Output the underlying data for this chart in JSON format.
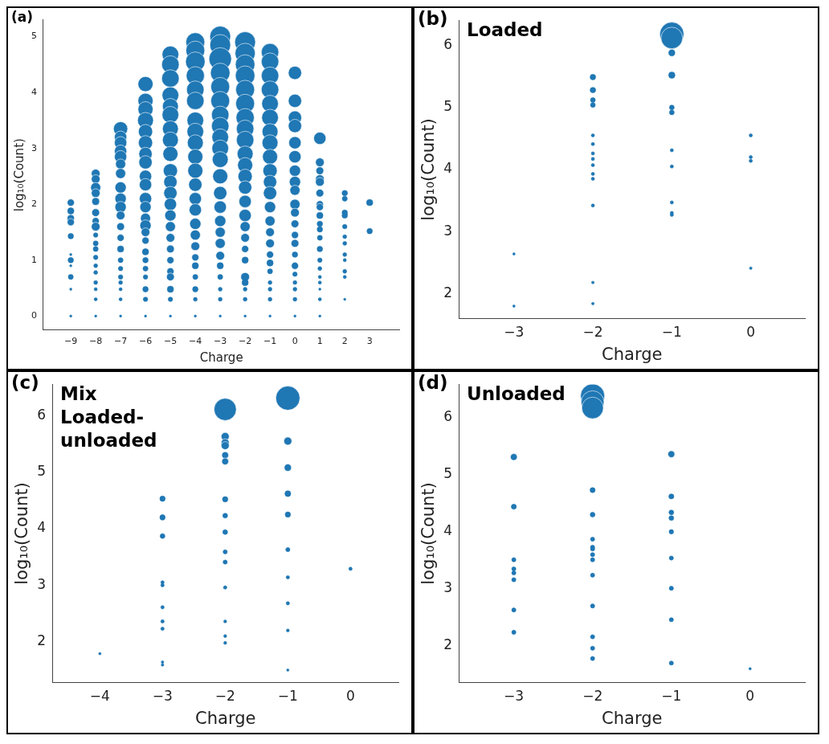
{
  "chart_data": [
    {
      "type": "bubble",
      "title": "(a)",
      "xlabel": "Charge",
      "ylabel": "log₁₀(Count)",
      "xlim": [
        -10.1,
        4.2
      ],
      "xticks": [
        -9,
        -8,
        -7,
        -6,
        -5,
        -4,
        -3,
        -2,
        -1,
        0,
        1,
        2,
        3
      ],
      "ylim": [
        -0.25,
        5.3
      ],
      "yticks": [
        0,
        1,
        2,
        3,
        4,
        5
      ],
      "series": [
        {
          "color": "#1f77b4",
          "x": [
            -9,
            -9,
            -9,
            -9,
            -9,
            -9,
            -9,
            -9,
            -9,
            -9,
            -9
          ],
          "values": [
            2.03,
            1.88,
            1.75,
            1.68,
            1.43,
            1.1,
            1.0,
            0.9,
            0.7,
            0.48,
            0
          ],
          "sizes": [
            0.1,
            0.08,
            0.08,
            0.1,
            0.06,
            0.01,
            0.06,
            0.01,
            0.05,
            0.01,
            0.01
          ]
        },
        {
          "color": "#1f77b4",
          "x": [
            -8,
            -8,
            -8,
            -8,
            -8,
            -8,
            -8,
            -8,
            -8,
            -8,
            -8,
            -8,
            -8,
            -8,
            -8,
            -8,
            -8,
            -8
          ],
          "values": [
            2.55,
            2.45,
            2.3,
            2.2,
            2.05,
            1.85,
            1.7,
            1.6,
            1.45,
            1.3,
            1.2,
            1.05,
            0.9,
            0.78,
            0.6,
            0.48,
            0.3,
            0
          ],
          "sizes": [
            0.15,
            0.15,
            0.2,
            0.15,
            0.12,
            0.12,
            0.1,
            0.15,
            0.04,
            0.05,
            0.05,
            0.04,
            0.03,
            0.03,
            0.03,
            0.02,
            0.02,
            0.01
          ]
        },
        {
          "color": "#1f77b4",
          "x": [
            -7,
            -7,
            -7,
            -7,
            -7,
            -7,
            -7,
            -7,
            -7,
            -7,
            -7,
            -7,
            -7,
            -7,
            -7,
            -7,
            -7,
            -7,
            -7,
            -7,
            -7
          ],
          "values": [
            3.35,
            3.2,
            3.1,
            2.95,
            2.85,
            2.72,
            2.55,
            2.3,
            2.1,
            1.95,
            1.8,
            1.6,
            1.4,
            1.2,
            1.0,
            0.85,
            0.7,
            0.6,
            0.48,
            0.3,
            0
          ],
          "sizes": [
            0.4,
            0.3,
            0.3,
            0.3,
            0.3,
            0.2,
            0.2,
            0.25,
            0.25,
            0.25,
            0.15,
            0.12,
            0.1,
            0.08,
            0.05,
            0.04,
            0.04,
            0.03,
            0.02,
            0.02,
            0.01
          ]
        },
        {
          "color": "#1f77b4",
          "x": [
            -6,
            -6,
            -6,
            -6,
            -6,
            -6,
            -6,
            -6,
            -6,
            -6,
            -6,
            -6,
            -6,
            -6,
            -6,
            -6,
            -6,
            -6,
            -6,
            -6,
            -6,
            -6,
            -6
          ],
          "values": [
            4.15,
            3.85,
            3.7,
            3.5,
            3.3,
            3.1,
            2.9,
            2.75,
            2.5,
            2.35,
            2.1,
            1.95,
            1.75,
            1.62,
            1.5,
            1.35,
            1.15,
            1.0,
            0.85,
            0.7,
            0.48,
            0.3,
            0
          ],
          "sizes": [
            0.45,
            0.45,
            0.45,
            0.5,
            0.4,
            0.4,
            0.35,
            0.35,
            0.3,
            0.3,
            0.3,
            0.25,
            0.2,
            0.25,
            0.15,
            0.1,
            0.08,
            0.06,
            0.05,
            0.04,
            0.06,
            0.04,
            0.01
          ]
        },
        {
          "color": "#1f77b4",
          "x": [
            -5,
            -5,
            -5,
            -5,
            -5,
            -5,
            -5,
            -5,
            -5,
            -5,
            -5,
            -5,
            -5,
            -5,
            -5,
            -5,
            -5,
            -5,
            -5,
            -5,
            -5,
            -5,
            -5
          ],
          "values": [
            4.68,
            4.5,
            4.25,
            3.95,
            3.75,
            3.6,
            3.35,
            3.15,
            2.9,
            2.6,
            2.4,
            2.2,
            2.0,
            1.8,
            1.6,
            1.4,
            1.2,
            1.0,
            0.8,
            0.7,
            0.48,
            0.3,
            0
          ],
          "sizes": [
            0.55,
            0.6,
            0.6,
            0.55,
            0.5,
            0.55,
            0.5,
            0.5,
            0.45,
            0.4,
            0.35,
            0.35,
            0.3,
            0.25,
            0.2,
            0.15,
            0.12,
            0.1,
            0.1,
            0.12,
            0.08,
            0.04,
            0.01
          ]
        },
        {
          "color": "#1f77b4",
          "x": [
            -4,
            -4,
            -4,
            -4,
            -4,
            -4,
            -4,
            -4,
            -4,
            -4,
            -4,
            -4,
            -4,
            -4,
            -4,
            -4,
            -4,
            -4,
            -4,
            -4,
            -4,
            -4,
            -4
          ],
          "values": [
            4.9,
            4.75,
            4.55,
            4.3,
            4.05,
            3.85,
            3.5,
            3.3,
            3.1,
            2.85,
            2.6,
            2.35,
            2.1,
            1.9,
            1.65,
            1.45,
            1.25,
            1.05,
            0.9,
            0.7,
            0.48,
            0.3,
            0
          ],
          "sizes": [
            0.7,
            0.7,
            0.75,
            0.65,
            0.6,
            0.6,
            0.55,
            0.55,
            0.5,
            0.45,
            0.45,
            0.35,
            0.3,
            0.3,
            0.25,
            0.2,
            0.15,
            0.1,
            0.08,
            0.05,
            0.06,
            0.03,
            0.01
          ]
        },
        {
          "color": "#1f77b4",
          "x": [
            -3,
            -3,
            -3,
            -3,
            -3,
            -3,
            -3,
            -3,
            -3,
            -3,
            -3,
            -3,
            -3,
            -3,
            -3,
            -3,
            -3,
            -3,
            -3,
            -3,
            -3,
            -3,
            -3
          ],
          "values": [
            5.0,
            4.85,
            4.6,
            4.35,
            4.1,
            3.85,
            3.6,
            3.4,
            3.2,
            3.0,
            2.8,
            2.5,
            2.2,
            1.95,
            1.7,
            1.5,
            1.3,
            1.08,
            0.9,
            0.7,
            0.48,
            0.3,
            0
          ],
          "sizes": [
            0.85,
            0.85,
            1,
            0.75,
            0.7,
            0.7,
            0.6,
            0.6,
            0.55,
            0.55,
            0.5,
            0.45,
            0.35,
            0.3,
            0.25,
            0.2,
            0.2,
            0.15,
            0.08,
            0.05,
            0.03,
            0.03,
            0.01
          ]
        },
        {
          "color": "#1f77b4",
          "x": [
            -2,
            -2,
            -2,
            -2,
            -2,
            -2,
            -2,
            -2,
            -2,
            -2,
            -2,
            -2,
            -2,
            -2,
            -2,
            -2,
            -2,
            -2,
            -2,
            -2,
            -2,
            -2,
            -2,
            -2
          ],
          "values": [
            4.9,
            4.7,
            4.5,
            4.3,
            4.05,
            3.8,
            3.55,
            3.35,
            3.15,
            2.9,
            2.7,
            2.5,
            2.3,
            2.05,
            1.8,
            1.6,
            1.4,
            1.2,
            1.0,
            0.7,
            0.6,
            0.48,
            0.3,
            0
          ],
          "sizes": [
            0.85,
            0.8,
            0.75,
            0.75,
            0.7,
            0.7,
            0.65,
            0.6,
            0.6,
            0.5,
            0.45,
            0.4,
            0.35,
            0.3,
            0.3,
            0.2,
            0.15,
            0.1,
            0.08,
            0.15,
            0.08,
            0.03,
            0.03,
            0.01
          ]
        },
        {
          "color": "#1f77b4",
          "x": [
            -1,
            -1,
            -1,
            -1,
            -1,
            -1,
            -1,
            -1,
            -1,
            -1,
            -1,
            -1,
            -1,
            -1,
            -1,
            -1,
            -1,
            -1,
            -1,
            -1,
            -1,
            -1,
            -1
          ],
          "values": [
            4.72,
            4.55,
            4.3,
            4.05,
            3.8,
            3.55,
            3.3,
            3.1,
            2.85,
            2.6,
            2.4,
            2.2,
            1.95,
            1.7,
            1.5,
            1.3,
            1.1,
            0.95,
            0.8,
            0.6,
            0.48,
            0.3,
            0
          ],
          "sizes": [
            0.6,
            0.6,
            0.6,
            0.6,
            0.55,
            0.55,
            0.5,
            0.5,
            0.45,
            0.4,
            0.35,
            0.35,
            0.25,
            0.2,
            0.15,
            0.15,
            0.1,
            0.08,
            0.05,
            0.03,
            0.03,
            0.03,
            0.01
          ]
        },
        {
          "color": "#1f77b4",
          "x": [
            0,
            0,
            0,
            0,
            0,
            0,
            0,
            0,
            0,
            0,
            0,
            0,
            0,
            0,
            0,
            0,
            0,
            0,
            0,
            0,
            0
          ],
          "values": [
            4.35,
            3.85,
            3.55,
            3.4,
            3.1,
            2.85,
            2.6,
            2.4,
            2.25,
            2.0,
            1.85,
            1.65,
            1.45,
            1.3,
            1.1,
            0.9,
            0.75,
            0.6,
            0.48,
            0.3,
            0
          ],
          "sizes": [
            0.35,
            0.35,
            0.35,
            0.35,
            0.3,
            0.3,
            0.25,
            0.25,
            0.2,
            0.2,
            0.15,
            0.12,
            0.1,
            0.12,
            0.06,
            0.1,
            0.04,
            0.03,
            0.03,
            0.03,
            0.01
          ]
        },
        {
          "color": "#1f77b4",
          "x": [
            1,
            1,
            1,
            1,
            1,
            1,
            1,
            1,
            1,
            1,
            1,
            1,
            1,
            1,
            1,
            1,
            1,
            1,
            1,
            1
          ],
          "values": [
            3.18,
            2.75,
            2.6,
            2.45,
            2.4,
            2.2,
            2.0,
            1.95,
            1.8,
            1.65,
            1.55,
            1.4,
            1.2,
            1.0,
            0.85,
            0.7,
            0.6,
            0.48,
            0.3,
            0
          ],
          "sizes": [
            0.3,
            0.15,
            0.12,
            0.15,
            0.15,
            0.12,
            0.1,
            0.1,
            0.08,
            0.06,
            0.06,
            0.05,
            0.06,
            0.04,
            0.03,
            0.02,
            0.02,
            0.01,
            0.02,
            0.01
          ]
        },
        {
          "color": "#1f77b4",
          "x": [
            2,
            2,
            2,
            2,
            2,
            2,
            2,
            2,
            2,
            2,
            2,
            2
          ],
          "values": [
            2.2,
            2.1,
            1.85,
            1.8,
            1.6,
            1.42,
            1.3,
            1.1,
            1.0,
            0.8,
            0.7,
            0.3
          ],
          "sizes": [
            0.06,
            0.05,
            0.06,
            0.06,
            0.04,
            0.03,
            0.03,
            0.03,
            0.02,
            0.03,
            0.02,
            0.01
          ]
        },
        {
          "color": "#1f77b4",
          "x": [
            3,
            3
          ],
          "values": [
            2.03,
            1.52
          ],
          "sizes": [
            0.08,
            0.06
          ]
        }
      ]
    },
    {
      "type": "bubble",
      "title": "(b)",
      "annotations": [
        "Loaded"
      ],
      "xlabel": "Charge",
      "ylabel": "log₁₀(Count)",
      "xlim": [
        -3.7,
        0.69
      ],
      "xticks": [
        -3,
        -2,
        -1,
        0
      ],
      "ylim": [
        1.6,
        6.4
      ],
      "yticks": [
        2,
        3,
        4,
        5,
        6
      ],
      "series": [
        {
          "color": "#1f77b4",
          "x": [
            -3,
            -3,
            -2,
            -2,
            -2,
            -2,
            -2,
            -2,
            -2,
            -2,
            -2,
            -2,
            -2,
            -2,
            -2,
            -2,
            -1,
            -1,
            -1,
            -1,
            -1,
            -1,
            -1,
            -1,
            -1,
            -1,
            -1,
            0,
            0,
            0,
            0
          ],
          "values": [
            2.64,
            1.8,
            5.49,
            5.28,
            5.12,
            5.04,
            4.55,
            4.41,
            4.26,
            4.17,
            4.07,
            3.93,
            3.85,
            3.42,
            2.18,
            1.84,
            6.18,
            6.12,
            5.88,
            5.52,
            5.0,
            4.92,
            4.31,
            4.05,
            3.47,
            3.3,
            3.27,
            4.55,
            4.2,
            4.14,
            2.41
          ],
          "sizes": [
            0.01,
            0.01,
            0.054,
            0.054,
            0.04,
            0.04,
            0.018,
            0.018,
            0.018,
            0.018,
            0.018,
            0.018,
            0.018,
            0.018,
            0.012,
            0.012,
            1,
            0.8,
            0.09,
            0.07,
            0.04,
            0.04,
            0.018,
            0.018,
            0.018,
            0.018,
            0.018,
            0.018,
            0.018,
            0.018,
            0.012
          ]
        }
      ]
    },
    {
      "type": "bubble",
      "title": "(c)",
      "annotations": [
        "Mix\nLoaded-\nunloaded"
      ],
      "xlabel": "Charge",
      "ylabel": "log₁₀(Count)",
      "xlim": [
        -4.76,
        0.77
      ],
      "xticks": [
        -4,
        -3,
        -2,
        -1,
        0
      ],
      "ylim": [
        1.28,
        6.55
      ],
      "yticks": [
        2,
        3,
        4,
        5,
        6
      ],
      "series": [
        {
          "color": "#1f77b4",
          "x": [
            -4,
            -3,
            -3,
            -3,
            -3,
            -3,
            -3,
            -3,
            -3,
            -3,
            -3,
            -2,
            -2,
            -2,
            -2,
            -2,
            -2,
            -2,
            -2,
            -2,
            -2,
            -2,
            -2,
            -2,
            -2,
            -2,
            -1,
            -1,
            -1,
            -1,
            -1,
            -1,
            -1,
            -1,
            -1,
            -1,
            0
          ],
          "values": [
            1.79,
            4.53,
            4.2,
            3.87,
            3.05,
            3.0,
            2.61,
            2.36,
            2.23,
            1.64,
            1.59,
            6.11,
            5.63,
            5.52,
            5.47,
            5.3,
            5.19,
            4.52,
            4.23,
            3.94,
            3.59,
            3.41,
            2.96,
            2.36,
            2.1,
            1.98,
            6.31,
            5.55,
            5.08,
            4.62,
            4.25,
            3.63,
            3.14,
            2.68,
            2.2,
            1.5,
            3.29
          ],
          "sizes": [
            0.01,
            0.05,
            0.05,
            0.04,
            0.02,
            0.02,
            0.02,
            0.02,
            0.02,
            0.012,
            0.012,
            0.85,
            0.11,
            0.11,
            0.11,
            0.08,
            0.08,
            0.05,
            0.04,
            0.04,
            0.03,
            0.03,
            0.02,
            0.015,
            0.015,
            0.015,
            1,
            0.11,
            0.09,
            0.06,
            0.05,
            0.03,
            0.02,
            0.02,
            0.015,
            0.01,
            0.02
          ]
        }
      ]
    },
    {
      "type": "bubble",
      "title": "(d)",
      "annotations": [
        "Unloaded"
      ],
      "xlabel": "Charge",
      "ylabel": "log₁₀(Count)",
      "xlim": [
        -3.7,
        0.7
      ],
      "xticks": [
        -3,
        -2,
        -1,
        0
      ],
      "ylim": [
        1.36,
        6.58
      ],
      "yticks": [
        2,
        3,
        4,
        5,
        6
      ],
      "series": [
        {
          "color": "#1f77b4",
          "x": [
            -3,
            -3,
            -3,
            -3,
            -3,
            -3,
            -3,
            -3,
            -2,
            -2,
            -2,
            -2,
            -2,
            -2,
            -2,
            -2,
            -2,
            -2,
            -2,
            -2,
            -2,
            -2,
            -2,
            -1,
            -1,
            -1,
            -1,
            -1,
            -1,
            -1,
            -1,
            -1,
            0
          ],
          "values": [
            5.31,
            4.44,
            3.51,
            3.35,
            3.28,
            3.16,
            2.63,
            2.24,
            6.38,
            6.27,
            6.17,
            4.73,
            4.3,
            3.87,
            3.73,
            3.7,
            3.6,
            3.51,
            3.24,
            2.7,
            2.16,
            1.96,
            1.78,
            5.36,
            4.62,
            4.34,
            4.24,
            4.0,
            3.54,
            3.01,
            2.46,
            1.7,
            1.6
          ],
          "sizes": [
            0.08,
            0.045,
            0.03,
            0.03,
            0.03,
            0.03,
            0.03,
            0.03,
            1,
            0.9,
            0.8,
            0.045,
            0.04,
            0.03,
            0.03,
            0.03,
            0.03,
            0.03,
            0.03,
            0.03,
            0.03,
            0.03,
            0.03,
            0.08,
            0.045,
            0.04,
            0.04,
            0.035,
            0.03,
            0.03,
            0.03,
            0.03,
            0.01
          ]
        }
      ]
    }
  ]
}
